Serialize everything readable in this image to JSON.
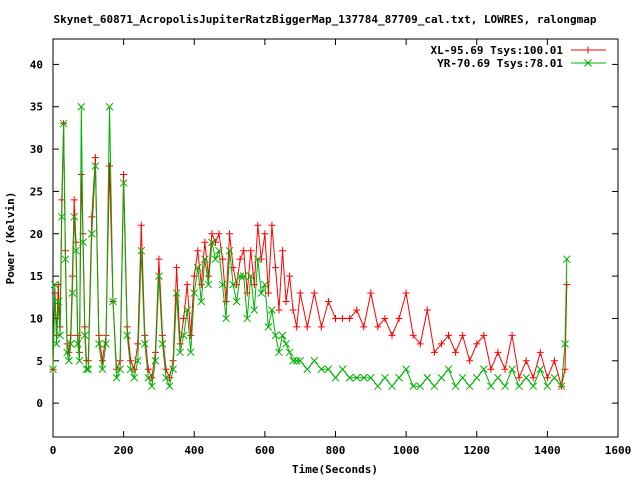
{
  "chart_data": {
    "type": "line",
    "title": "Skynet_60871_AcropolisJupiterRatzBiggerMap_137784_87709_cal.txt, LOWRES, ralongmap",
    "xlabel": "Time(Seconds)",
    "ylabel": "Power (Kelvin)",
    "xlim": [
      0,
      1600
    ],
    "ylim": [
      -4,
      43
    ],
    "xticks": [
      0,
      200,
      400,
      600,
      800,
      1000,
      1200,
      1400,
      1600
    ],
    "yticks": [
      0,
      5,
      10,
      15,
      20,
      25,
      30,
      35,
      40
    ],
    "xtick_labels": [
      "0",
      "200",
      "400",
      "600",
      "800",
      "1000",
      "1200",
      "1400",
      "1600"
    ],
    "ytick_labels": [
      "0",
      "5",
      "10",
      "15",
      "20",
      "25",
      "30",
      "35",
      "40"
    ],
    "legend_position": "top-right",
    "grid": false,
    "series": [
      {
        "name": "XL-95.69 Tsys:100.01",
        "color": "#ff0000",
        "marker": "plus",
        "x": [
          0,
          5,
          10,
          15,
          20,
          25,
          30,
          35,
          40,
          45,
          50,
          55,
          60,
          65,
          70,
          75,
          80,
          85,
          90,
          95,
          100,
          110,
          120,
          130,
          140,
          150,
          160,
          170,
          180,
          190,
          200,
          210,
          220,
          230,
          240,
          250,
          260,
          270,
          280,
          290,
          300,
          310,
          320,
          330,
          340,
          350,
          360,
          370,
          380,
          390,
          400,
          410,
          420,
          430,
          440,
          450,
          460,
          470,
          480,
          490,
          500,
          510,
          520,
          530,
          540,
          550,
          560,
          570,
          580,
          590,
          600,
          610,
          620,
          630,
          640,
          650,
          660,
          670,
          680,
          690,
          700,
          720,
          740,
          760,
          780,
          800,
          820,
          840,
          860,
          880,
          900,
          920,
          940,
          960,
          980,
          1000,
          1020,
          1040,
          1060,
          1080,
          1100,
          1120,
          1140,
          1160,
          1180,
          1200,
          1220,
          1240,
          1260,
          1280,
          1300,
          1320,
          1340,
          1360,
          1380,
          1400,
          1420,
          1440,
          1450,
          1455
        ],
        "y": [
          4,
          13,
          8,
          14,
          9,
          24,
          33,
          18,
          7,
          6,
          8,
          15,
          24,
          19,
          8,
          6,
          27,
          20,
          9,
          5,
          5,
          22,
          29,
          8,
          5,
          8,
          28,
          12,
          4,
          5,
          27,
          9,
          5,
          4,
          7,
          21,
          8,
          4,
          3,
          6,
          17,
          8,
          4,
          3,
          5,
          16,
          7,
          10,
          14,
          8,
          15,
          18,
          14,
          19,
          15,
          20,
          19,
          20,
          17,
          12,
          20,
          16,
          14,
          17,
          18,
          13,
          18,
          14,
          21,
          17,
          20,
          13,
          21,
          16,
          11,
          18,
          12,
          15,
          11,
          9,
          13,
          9,
          13,
          9,
          12,
          10,
          10,
          10,
          11,
          9,
          13,
          9,
          10,
          8,
          10,
          13,
          8,
          7,
          11,
          6,
          7,
          8,
          6,
          8,
          5,
          7,
          8,
          4,
          6,
          4,
          8,
          3,
          5,
          3,
          6,
          3,
          5,
          2,
          4,
          14
        ]
      },
      {
        "name": "YR-70.69 Tsys:78.01",
        "color": "#00b000",
        "marker": "cross",
        "x": [
          0,
          5,
          10,
          15,
          20,
          25,
          30,
          35,
          40,
          45,
          50,
          55,
          60,
          65,
          70,
          75,
          80,
          85,
          90,
          95,
          100,
          110,
          120,
          130,
          140,
          150,
          160,
          170,
          180,
          190,
          200,
          210,
          220,
          230,
          240,
          250,
          260,
          270,
          280,
          290,
          300,
          310,
          320,
          330,
          340,
          350,
          360,
          370,
          380,
          390,
          400,
          410,
          420,
          430,
          440,
          450,
          460,
          470,
          480,
          490,
          500,
          510,
          520,
          530,
          540,
          550,
          560,
          570,
          580,
          590,
          600,
          610,
          620,
          630,
          640,
          650,
          660,
          670,
          680,
          690,
          700,
          720,
          740,
          760,
          780,
          800,
          820,
          840,
          860,
          880,
          900,
          920,
          940,
          960,
          980,
          1000,
          1020,
          1040,
          1060,
          1080,
          1100,
          1120,
          1140,
          1160,
          1180,
          1200,
          1220,
          1240,
          1260,
          1280,
          1300,
          1320,
          1340,
          1360,
          1380,
          1400,
          1420,
          1440,
          1450,
          1455
        ],
        "y": [
          4,
          14,
          7,
          12,
          8,
          22,
          33,
          17,
          6,
          5,
          7,
          13,
          22,
          18,
          7,
          5,
          35,
          19,
          8,
          4,
          4,
          20,
          28,
          7,
          4,
          7,
          35,
          12,
          3,
          4,
          26,
          8,
          4,
          3,
          5,
          18,
          7,
          3,
          2,
          5,
          15,
          7,
          3,
          2,
          4,
          13,
          6,
          8,
          11,
          6,
          13,
          16,
          12,
          17,
          14,
          19,
          17,
          18,
          14,
          10,
          18,
          14,
          12,
          15,
          15,
          10,
          15,
          11,
          17,
          13,
          14,
          9,
          11,
          8,
          6,
          8,
          7,
          6,
          5,
          5,
          5,
          4,
          5,
          4,
          4,
          3,
          4,
          3,
          3,
          3,
          3,
          2,
          3,
          2,
          3,
          4,
          2,
          2,
          3,
          2,
          3,
          4,
          2,
          3,
          2,
          3,
          4,
          2,
          3,
          2,
          4,
          2,
          3,
          2,
          4,
          2,
          3,
          2,
          7,
          17
        ]
      }
    ]
  }
}
